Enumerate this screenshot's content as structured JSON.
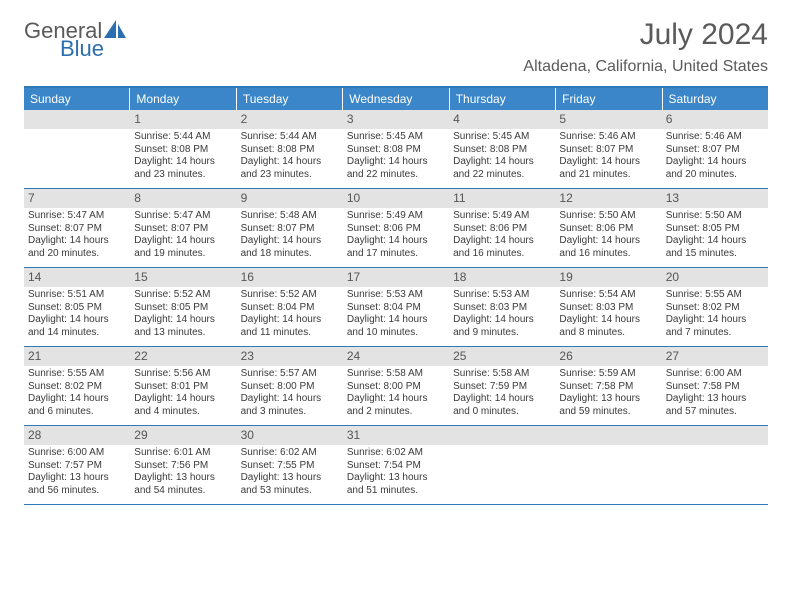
{
  "brand": {
    "general": "General",
    "blue": "Blue"
  },
  "title": {
    "month": "July 2024",
    "location": "Altadena, California, United States"
  },
  "colors": {
    "header_bar": "#3a86c8",
    "header_border": "#2f79b9",
    "daynum_bg": "#e3e3e3",
    "text": "#3a3a3a",
    "brand_gray": "#5a5a5a",
    "brand_blue": "#2c6fb0"
  },
  "day_headers": [
    "Sunday",
    "Monday",
    "Tuesday",
    "Wednesday",
    "Thursday",
    "Friday",
    "Saturday"
  ],
  "weeks": [
    [
      {
        "num": "",
        "sunrise": "",
        "sunset": "",
        "daylight": ""
      },
      {
        "num": "1",
        "sunrise": "Sunrise: 5:44 AM",
        "sunset": "Sunset: 8:08 PM",
        "daylight": "Daylight: 14 hours and 23 minutes."
      },
      {
        "num": "2",
        "sunrise": "Sunrise: 5:44 AM",
        "sunset": "Sunset: 8:08 PM",
        "daylight": "Daylight: 14 hours and 23 minutes."
      },
      {
        "num": "3",
        "sunrise": "Sunrise: 5:45 AM",
        "sunset": "Sunset: 8:08 PM",
        "daylight": "Daylight: 14 hours and 22 minutes."
      },
      {
        "num": "4",
        "sunrise": "Sunrise: 5:45 AM",
        "sunset": "Sunset: 8:08 PM",
        "daylight": "Daylight: 14 hours and 22 minutes."
      },
      {
        "num": "5",
        "sunrise": "Sunrise: 5:46 AM",
        "sunset": "Sunset: 8:07 PM",
        "daylight": "Daylight: 14 hours and 21 minutes."
      },
      {
        "num": "6",
        "sunrise": "Sunrise: 5:46 AM",
        "sunset": "Sunset: 8:07 PM",
        "daylight": "Daylight: 14 hours and 20 minutes."
      }
    ],
    [
      {
        "num": "7",
        "sunrise": "Sunrise: 5:47 AM",
        "sunset": "Sunset: 8:07 PM",
        "daylight": "Daylight: 14 hours and 20 minutes."
      },
      {
        "num": "8",
        "sunrise": "Sunrise: 5:47 AM",
        "sunset": "Sunset: 8:07 PM",
        "daylight": "Daylight: 14 hours and 19 minutes."
      },
      {
        "num": "9",
        "sunrise": "Sunrise: 5:48 AM",
        "sunset": "Sunset: 8:07 PM",
        "daylight": "Daylight: 14 hours and 18 minutes."
      },
      {
        "num": "10",
        "sunrise": "Sunrise: 5:49 AM",
        "sunset": "Sunset: 8:06 PM",
        "daylight": "Daylight: 14 hours and 17 minutes."
      },
      {
        "num": "11",
        "sunrise": "Sunrise: 5:49 AM",
        "sunset": "Sunset: 8:06 PM",
        "daylight": "Daylight: 14 hours and 16 minutes."
      },
      {
        "num": "12",
        "sunrise": "Sunrise: 5:50 AM",
        "sunset": "Sunset: 8:06 PM",
        "daylight": "Daylight: 14 hours and 16 minutes."
      },
      {
        "num": "13",
        "sunrise": "Sunrise: 5:50 AM",
        "sunset": "Sunset: 8:05 PM",
        "daylight": "Daylight: 14 hours and 15 minutes."
      }
    ],
    [
      {
        "num": "14",
        "sunrise": "Sunrise: 5:51 AM",
        "sunset": "Sunset: 8:05 PM",
        "daylight": "Daylight: 14 hours and 14 minutes."
      },
      {
        "num": "15",
        "sunrise": "Sunrise: 5:52 AM",
        "sunset": "Sunset: 8:05 PM",
        "daylight": "Daylight: 14 hours and 13 minutes."
      },
      {
        "num": "16",
        "sunrise": "Sunrise: 5:52 AM",
        "sunset": "Sunset: 8:04 PM",
        "daylight": "Daylight: 14 hours and 11 minutes."
      },
      {
        "num": "17",
        "sunrise": "Sunrise: 5:53 AM",
        "sunset": "Sunset: 8:04 PM",
        "daylight": "Daylight: 14 hours and 10 minutes."
      },
      {
        "num": "18",
        "sunrise": "Sunrise: 5:53 AM",
        "sunset": "Sunset: 8:03 PM",
        "daylight": "Daylight: 14 hours and 9 minutes."
      },
      {
        "num": "19",
        "sunrise": "Sunrise: 5:54 AM",
        "sunset": "Sunset: 8:03 PM",
        "daylight": "Daylight: 14 hours and 8 minutes."
      },
      {
        "num": "20",
        "sunrise": "Sunrise: 5:55 AM",
        "sunset": "Sunset: 8:02 PM",
        "daylight": "Daylight: 14 hours and 7 minutes."
      }
    ],
    [
      {
        "num": "21",
        "sunrise": "Sunrise: 5:55 AM",
        "sunset": "Sunset: 8:02 PM",
        "daylight": "Daylight: 14 hours and 6 minutes."
      },
      {
        "num": "22",
        "sunrise": "Sunrise: 5:56 AM",
        "sunset": "Sunset: 8:01 PM",
        "daylight": "Daylight: 14 hours and 4 minutes."
      },
      {
        "num": "23",
        "sunrise": "Sunrise: 5:57 AM",
        "sunset": "Sunset: 8:00 PM",
        "daylight": "Daylight: 14 hours and 3 minutes."
      },
      {
        "num": "24",
        "sunrise": "Sunrise: 5:58 AM",
        "sunset": "Sunset: 8:00 PM",
        "daylight": "Daylight: 14 hours and 2 minutes."
      },
      {
        "num": "25",
        "sunrise": "Sunrise: 5:58 AM",
        "sunset": "Sunset: 7:59 PM",
        "daylight": "Daylight: 14 hours and 0 minutes."
      },
      {
        "num": "26",
        "sunrise": "Sunrise: 5:59 AM",
        "sunset": "Sunset: 7:58 PM",
        "daylight": "Daylight: 13 hours and 59 minutes."
      },
      {
        "num": "27",
        "sunrise": "Sunrise: 6:00 AM",
        "sunset": "Sunset: 7:58 PM",
        "daylight": "Daylight: 13 hours and 57 minutes."
      }
    ],
    [
      {
        "num": "28",
        "sunrise": "Sunrise: 6:00 AM",
        "sunset": "Sunset: 7:57 PM",
        "daylight": "Daylight: 13 hours and 56 minutes."
      },
      {
        "num": "29",
        "sunrise": "Sunrise: 6:01 AM",
        "sunset": "Sunset: 7:56 PM",
        "daylight": "Daylight: 13 hours and 54 minutes."
      },
      {
        "num": "30",
        "sunrise": "Sunrise: 6:02 AM",
        "sunset": "Sunset: 7:55 PM",
        "daylight": "Daylight: 13 hours and 53 minutes."
      },
      {
        "num": "31",
        "sunrise": "Sunrise: 6:02 AM",
        "sunset": "Sunset: 7:54 PM",
        "daylight": "Daylight: 13 hours and 51 minutes."
      },
      {
        "num": "",
        "sunrise": "",
        "sunset": "",
        "daylight": ""
      },
      {
        "num": "",
        "sunrise": "",
        "sunset": "",
        "daylight": ""
      },
      {
        "num": "",
        "sunrise": "",
        "sunset": "",
        "daylight": ""
      }
    ]
  ]
}
